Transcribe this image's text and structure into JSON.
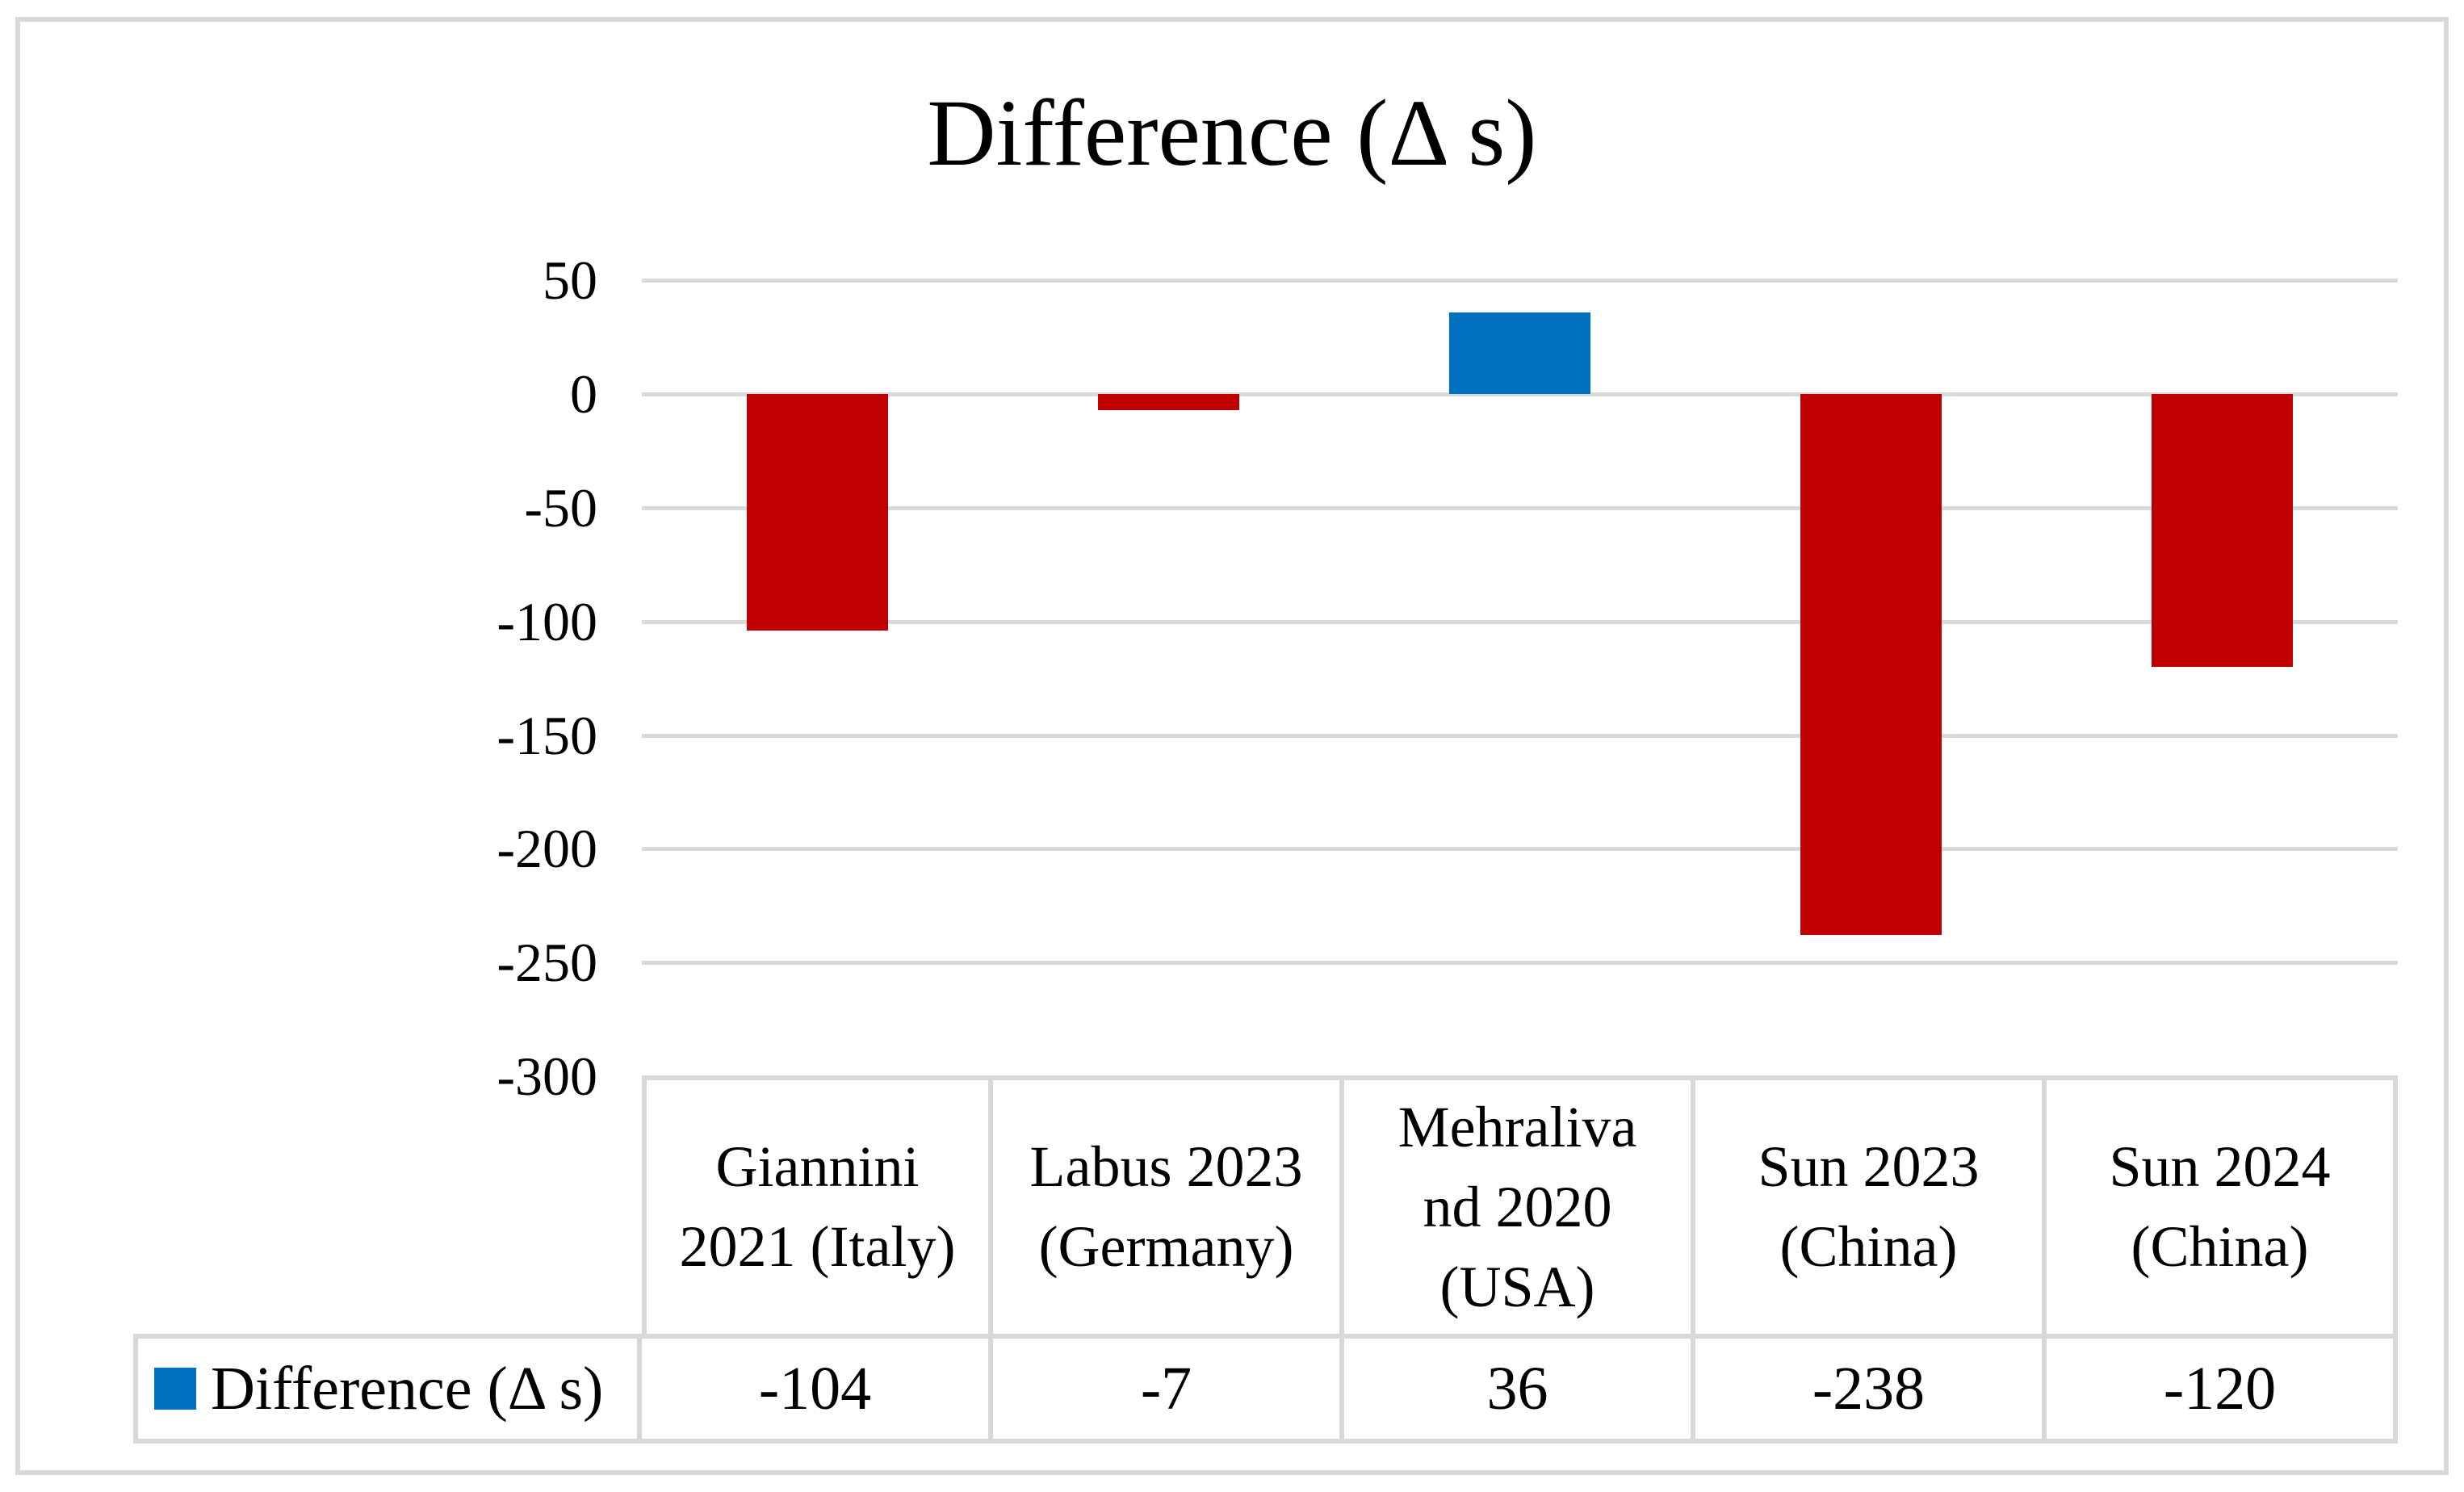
{
  "title": "Difference (Δ s)",
  "colors": {
    "negative_bar": "#C00000",
    "positive_bar": "#0070C0",
    "gridline": "#D9D9D9",
    "table_border": "#D9D9D9",
    "frame_border": "#D9D9D9",
    "legend_marker": "#0070C0",
    "text": "#000000"
  },
  "chart_data": {
    "type": "bar",
    "title": "Difference (Δ s)",
    "categories": [
      "Giannini 2021 (Italy)",
      "Labus 2023 (Germany)",
      "Mehralivand 2020 (USA)",
      "Sun 2023 (China)",
      "Sun 2024 (China)"
    ],
    "category_display": [
      "Giannini\n2021 (Italy)",
      "Labus 2023\n(Germany)",
      "Mehraliva\nnd 2020\n(USA)",
      "Sun 2023\n(China)",
      "Sun 2024\n(China)"
    ],
    "series": [
      {
        "name": "Difference (Δ s)",
        "values": [
          -104,
          -7,
          36,
          -238,
          -120
        ]
      }
    ],
    "ylim": [
      -300,
      50
    ],
    "ytick_interval": 50,
    "yticks": [
      50,
      0,
      -50,
      -100,
      -150,
      -200,
      -250,
      -300
    ],
    "ytick_labels": [
      "50",
      "0",
      "-50",
      "-100",
      "-150",
      "-200",
      "-250",
      "-300"
    ],
    "grid": true,
    "bar_color_rule": "negative values red (#C00000), positive values blue (#0070C0)",
    "legend_position": "bottom table row header"
  },
  "table": {
    "legend_label": "Difference (Δ s)",
    "values_display": [
      "-104",
      "-7",
      "36",
      "-238",
      "-120"
    ]
  }
}
